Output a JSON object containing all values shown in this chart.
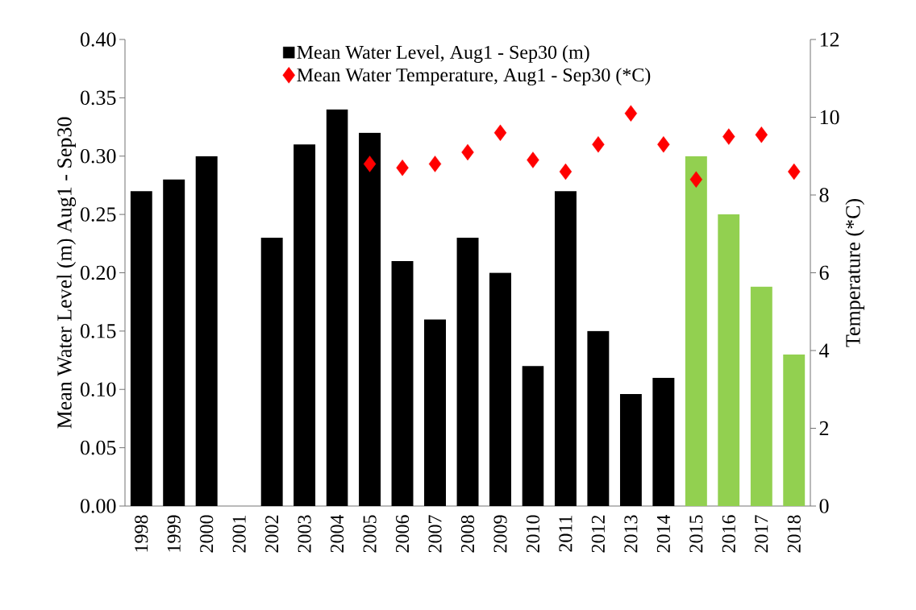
{
  "chart_data": {
    "type": "bar",
    "categories": [
      "1998",
      "1999",
      "2000",
      "2001",
      "2002",
      "2003",
      "2004",
      "2005",
      "2006",
      "2007",
      "2008",
      "2009",
      "2010",
      "2011",
      "2012",
      "2013",
      "2014",
      "2015",
      "2016",
      "2017",
      "2018"
    ],
    "series": [
      {
        "name": "Mean Water Level, Aug1 - Sep30 (m)",
        "colors": [
          "#000000",
          "#000000",
          "#000000",
          "#000000",
          "#000000",
          "#000000",
          "#000000",
          "#000000",
          "#000000",
          "#000000",
          "#000000",
          "#000000",
          "#000000",
          "#000000",
          "#000000",
          "#000000",
          "#000000",
          "#92d050",
          "#92d050",
          "#92d050",
          "#92d050"
        ],
        "values": [
          0.27,
          0.28,
          0.3,
          null,
          0.23,
          0.31,
          0.34,
          0.32,
          0.21,
          0.16,
          0.23,
          0.2,
          0.12,
          0.27,
          0.15,
          0.096,
          0.11,
          0.3,
          0.25,
          0.188,
          0.13
        ]
      },
      {
        "name": "Mean Water Temperature, Aug1 - Sep30 (*C)",
        "type": "scatter",
        "axis": "y2",
        "marker": "diamond",
        "color": "#ff0000",
        "values": [
          null,
          null,
          null,
          null,
          null,
          null,
          null,
          8.8,
          8.7,
          8.8,
          9.1,
          9.6,
          8.9,
          8.6,
          9.3,
          10.1,
          9.3,
          8.4,
          9.5,
          9.55,
          8.6
        ]
      }
    ],
    "ylabel": "Mean Water Level (m) Aug1 - Sep30",
    "y2label": "Temperature (*C)",
    "ylim": [
      0,
      0.4
    ],
    "yticks": [
      {
        "value": 0,
        "label": "0.00"
      },
      {
        "value": 0.05,
        "label": "0.05"
      },
      {
        "value": 0.1,
        "label": "0.10"
      },
      {
        "value": 0.15,
        "label": "0.15"
      },
      {
        "value": 0.2,
        "label": "0.20"
      },
      {
        "value": 0.25,
        "label": "0.25"
      },
      {
        "value": 0.3,
        "label": "0.30"
      },
      {
        "value": 0.35,
        "label": "0.35"
      },
      {
        "value": 0.4,
        "label": "0.40"
      }
    ],
    "y2lim": [
      0,
      12
    ],
    "y2ticks": [
      0,
      2,
      4,
      6,
      8,
      10,
      12
    ],
    "legend": "top"
  }
}
